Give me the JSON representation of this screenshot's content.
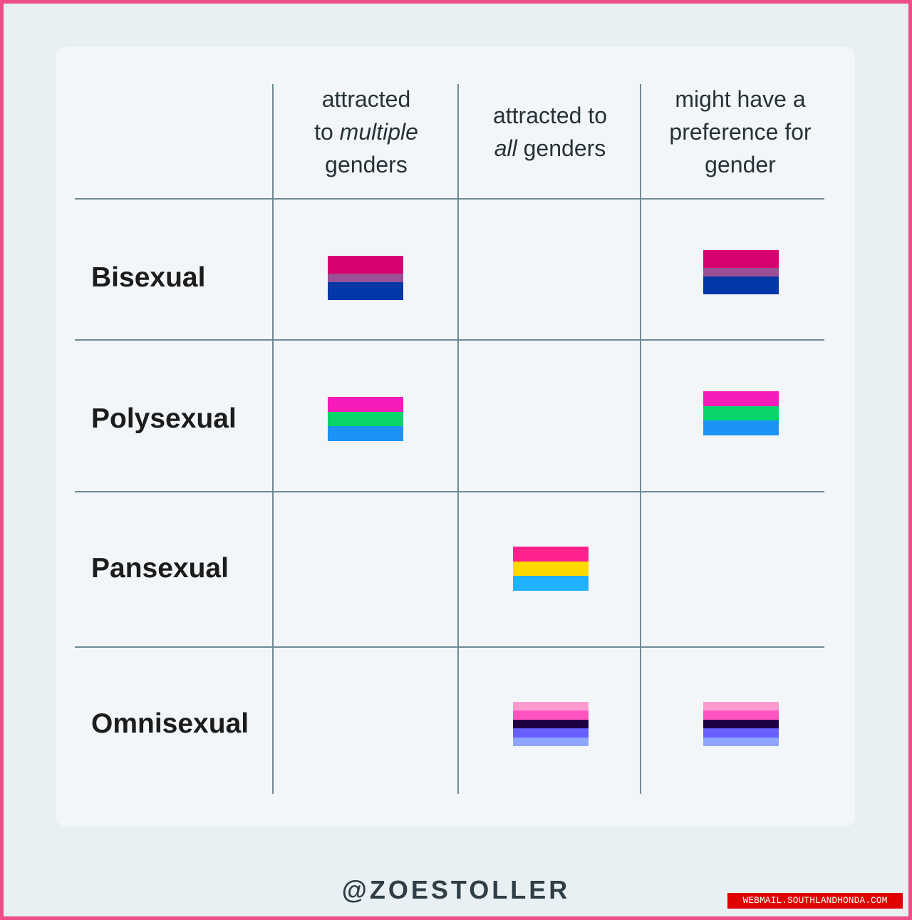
{
  "columns": [
    {
      "lines": [
        [
          {
            "t": "attracted",
            "em": false
          }
        ],
        [
          {
            "t": "to ",
            "em": false
          },
          {
            "t": "multiple",
            "em": true
          }
        ],
        [
          {
            "t": "genders",
            "em": false
          }
        ]
      ]
    },
    {
      "lines": [
        [
          {
            "t": "attracted to",
            "em": false
          }
        ],
        [
          {
            "t": "all",
            "em": true
          },
          {
            "t": " genders",
            "em": false
          }
        ]
      ]
    },
    {
      "lines": [
        [
          {
            "t": "might have a",
            "em": false
          }
        ],
        [
          {
            "t": "preference for",
            "em": false
          }
        ],
        [
          {
            "t": "gender",
            "em": false
          }
        ]
      ]
    }
  ],
  "rows": [
    {
      "label": "Bisexual",
      "flag": "bisexual-flag",
      "cells": [
        true,
        false,
        true
      ]
    },
    {
      "label": "Polysexual",
      "flag": "polysexual-flag",
      "cells": [
        true,
        false,
        true
      ]
    },
    {
      "label": "Pansexual",
      "flag": "pansexual-flag",
      "cells": [
        false,
        true,
        false
      ]
    },
    {
      "label": "Omnisexual",
      "flag": "omnisexual-flag",
      "cells": [
        false,
        true,
        true
      ]
    }
  ],
  "flags": {
    "bisexual-flag": [
      {
        "color": "#d60270",
        "weight": 2
      },
      {
        "color": "#9b4f96",
        "weight": 1
      },
      {
        "color": "#0038a8",
        "weight": 2
      }
    ],
    "polysexual-flag": [
      {
        "color": "#f61cb9",
        "weight": 1
      },
      {
        "color": "#07d569",
        "weight": 1
      },
      {
        "color": "#1c92f6",
        "weight": 1
      }
    ],
    "pansexual-flag": [
      {
        "color": "#ff218c",
        "weight": 1
      },
      {
        "color": "#ffd800",
        "weight": 1
      },
      {
        "color": "#21b1ff",
        "weight": 1
      }
    ],
    "omnisexual-flag": [
      {
        "color": "#fe9ace",
        "weight": 1
      },
      {
        "color": "#ff53bf",
        "weight": 1
      },
      {
        "color": "#200044",
        "weight": 1
      },
      {
        "color": "#6760fe",
        "weight": 1
      },
      {
        "color": "#8ea6ff",
        "weight": 1
      }
    ]
  },
  "handle": "@ZOESTOLLER",
  "watermark": "WEBMAIL.SOUTHLANDHONDA.COM",
  "colors": {
    "border": "#ee4f86",
    "grid": "#6e8a94",
    "card": "#f3f6f8",
    "background": "#e8f0f3"
  }
}
